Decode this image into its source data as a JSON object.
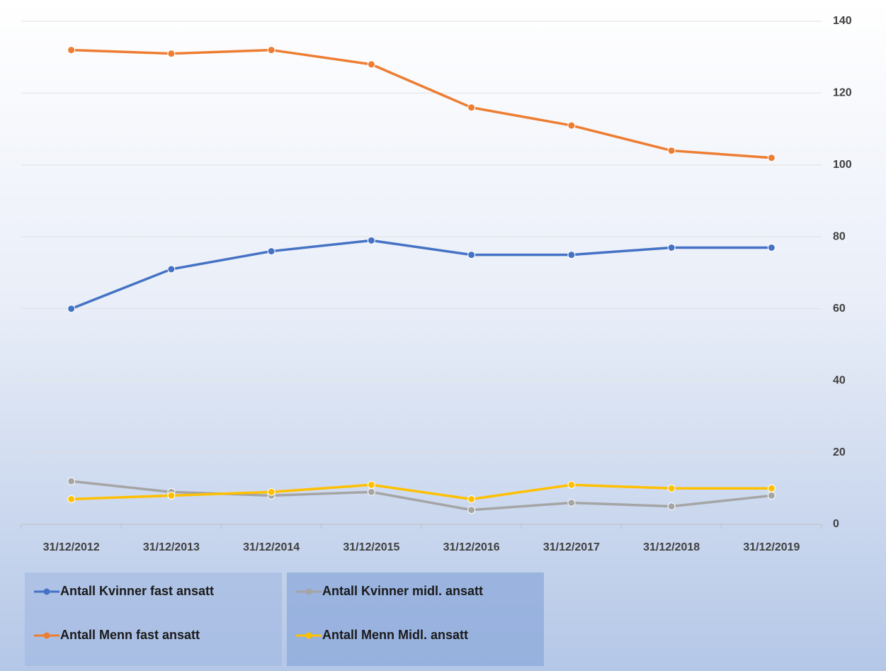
{
  "chart_data": {
    "type": "line",
    "categories": [
      "31/12/2012",
      "31/12/2013",
      "31/12/2014",
      "31/12/2015",
      "31/12/2016",
      "31/12/2017",
      "31/12/2018",
      "31/12/2019"
    ],
    "series": [
      {
        "name": "Antall Kvinner fast ansatt",
        "color": "#4472c4",
        "values": [
          60,
          71,
          76,
          79,
          75,
          75,
          77,
          77
        ]
      },
      {
        "name": "Antall Menn fast ansatt",
        "color": "#ed7d31",
        "values": [
          132,
          131,
          132,
          128,
          116,
          111,
          104,
          102
        ]
      },
      {
        "name": "Antall Kvinner midl. ansatt",
        "color": "#a5a5a5",
        "values": [
          12,
          9,
          8,
          9,
          4,
          6,
          5,
          8
        ]
      },
      {
        "name": "Antall Menn Midl. ansatt",
        "color": "#ffc000",
        "values": [
          7,
          8,
          9,
          11,
          7,
          11,
          10,
          10
        ]
      }
    ],
    "ylim": [
      0,
      140
    ],
    "yticks": [
      0,
      20,
      40,
      60,
      80,
      100,
      120,
      140
    ],
    "grid": true,
    "y_axis_side": "right",
    "legend": "bottom"
  }
}
